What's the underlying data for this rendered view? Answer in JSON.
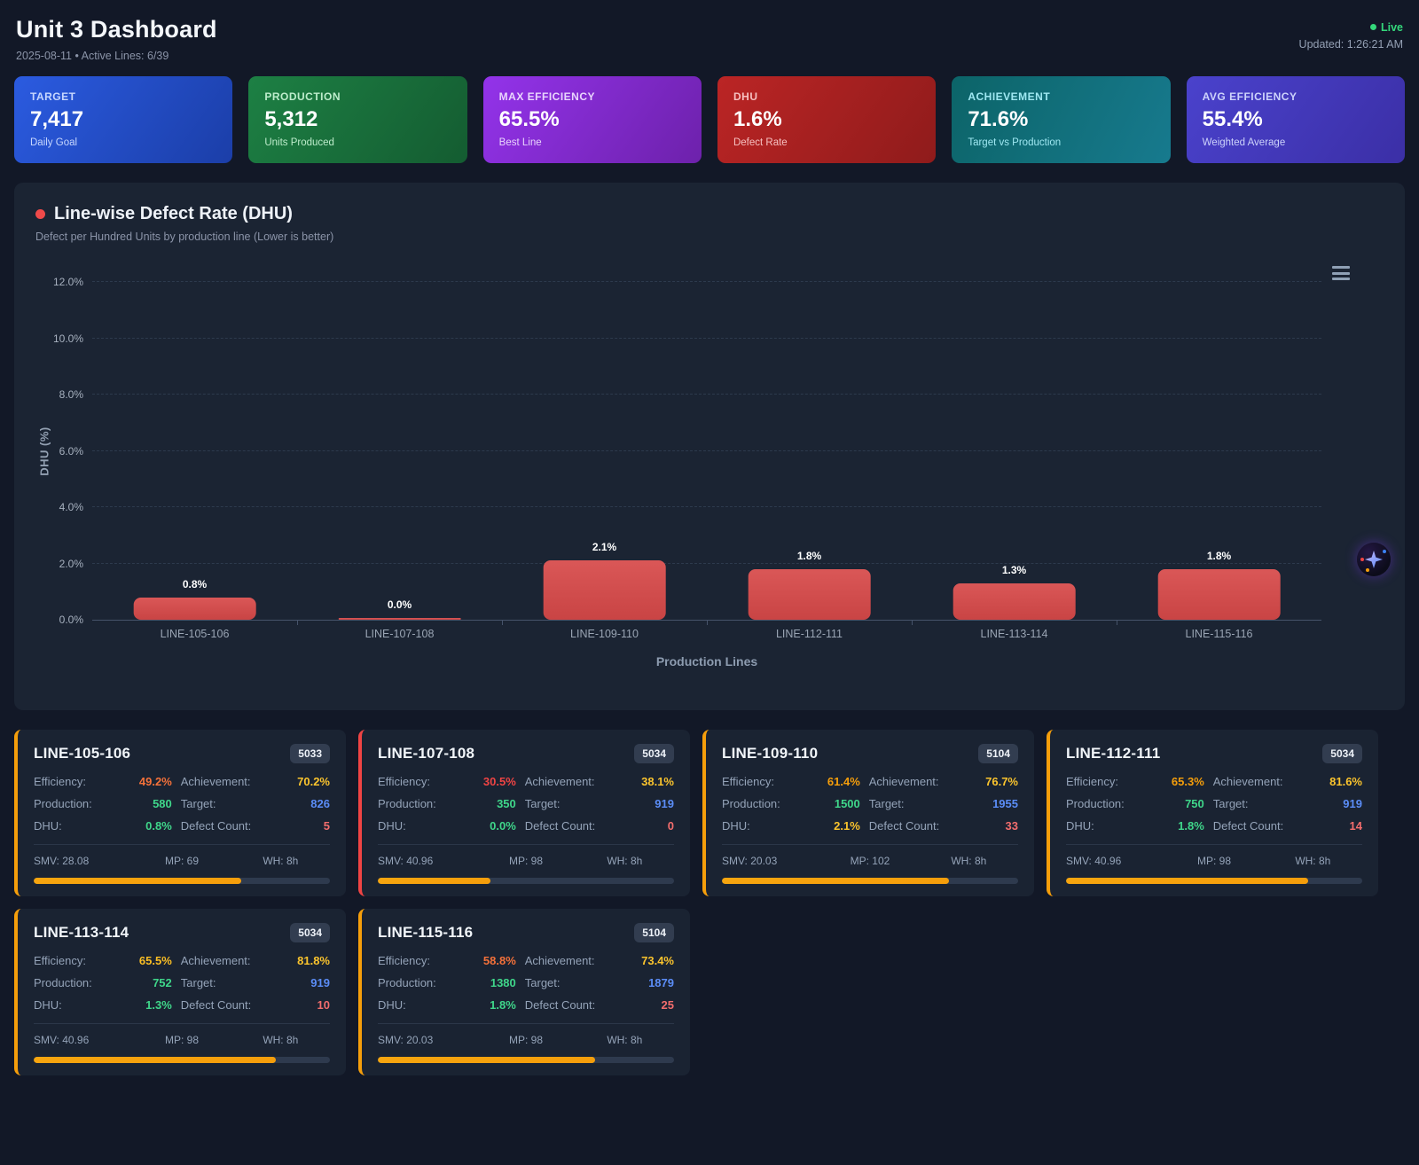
{
  "header": {
    "title": "Unit 3 Dashboard",
    "subtitle": "2025-08-11 • Active Lines: 6/39",
    "live_label": "Live",
    "updated": "Updated: 1:26:21 AM",
    "live_color": "#34d87b"
  },
  "kpis": [
    {
      "label": "TARGET",
      "value": "7,417",
      "sublabel": "Daily Goal",
      "gradient": "linear-gradient(125deg,#2b5be0,#1b3ea8)",
      "tint": "#c7d7fe"
    },
    {
      "label": "PRODUCTION",
      "value": "5,312",
      "sublabel": "Units Produced",
      "gradient": "linear-gradient(125deg,#1d8044,#145c31)",
      "tint": "#bdeccb"
    },
    {
      "label": "MAX EFFICIENCY",
      "value": "65.5%",
      "sublabel": "Best Line",
      "gradient": "linear-gradient(125deg,#9333ea,#6d21ab)",
      "tint": "#e9d5fd"
    },
    {
      "label": "DHU",
      "value": "1.6%",
      "sublabel": "Defect Rate",
      "gradient": "linear-gradient(125deg,#bb2525,#8f1b1b)",
      "tint": "#f6c0c0"
    },
    {
      "label": "ACHIEVEMENT",
      "value": "71.6%",
      "sublabel": "Target vs Production",
      "gradient": "linear-gradient(115deg,#0c6468,#177a8e)",
      "tint": "#9fe8f2"
    },
    {
      "label": "AVG EFFICIENCY",
      "value": "55.4%",
      "sublabel": "Weighted Average",
      "gradient": "linear-gradient(125deg,#4a42cc,#3b2fa6)",
      "tint": "#cdd3fb"
    }
  ],
  "chart_data": {
    "type": "bar",
    "title": "Line-wise Defect Rate (DHU)",
    "subtitle": "Defect per Hundred Units by production line (Lower is better)",
    "categories": [
      "LINE-105-106",
      "LINE-107-108",
      "LINE-109-110",
      "LINE-112-111",
      "LINE-113-114",
      "LINE-115-116"
    ],
    "values": [
      0.8,
      0.0,
      2.1,
      1.8,
      1.3,
      1.8
    ],
    "data_labels": [
      "0.8%",
      "0.0%",
      "2.1%",
      "1.8%",
      "1.3%",
      "1.8%"
    ],
    "xlabel": "Production Lines",
    "ylabel": "DHU (%)",
    "ylim": [
      0,
      12
    ],
    "ytick_step": 2,
    "ytick_labels": [
      "0.0%",
      "2.0%",
      "4.0%",
      "6.0%",
      "8.0%",
      "10.0%",
      "12.0%"
    ],
    "grid": "horizontal-dashed",
    "legend": false,
    "bar_color": "#d14c4c"
  },
  "stat_labels": {
    "efficiency": "Efficiency:",
    "achievement": "Achievement:",
    "production": "Production:",
    "target": "Target:",
    "dhu": "DHU:",
    "defects": "Defect Count:"
  },
  "lines": [
    {
      "name": "LINE-105-106",
      "badge": "5033",
      "border": "#f59e0b",
      "efficiency": "49.2%",
      "eff_color": "#f4713a",
      "achievement": "70.2%",
      "ach_color": "#fbc42d",
      "production": "580",
      "prod_color": "#3fd68a",
      "target": "826",
      "target_color": "#5b8df7",
      "dhu": "0.8%",
      "dhu_color": "#3fd68a",
      "defects": "5",
      "defect_color": "#f26d6d",
      "smv": "SMV: 28.08",
      "mp": "MP: 69",
      "wh": "WH: 8h",
      "progress": 70.2
    },
    {
      "name": "LINE-107-108",
      "badge": "5034",
      "border": "#ef4444",
      "efficiency": "30.5%",
      "eff_color": "#ef4444",
      "achievement": "38.1%",
      "ach_color": "#fbc42d",
      "production": "350",
      "prod_color": "#3fd68a",
      "target": "919",
      "target_color": "#5b8df7",
      "dhu": "0.0%",
      "dhu_color": "#3fd68a",
      "defects": "0",
      "defect_color": "#f26d6d",
      "smv": "SMV: 40.96",
      "mp": "MP: 98",
      "wh": "WH: 8h",
      "progress": 38.1
    },
    {
      "name": "LINE-109-110",
      "badge": "5104",
      "border": "#f59e0b",
      "efficiency": "61.4%",
      "eff_color": "#f59e0b",
      "achievement": "76.7%",
      "ach_color": "#fbc42d",
      "production": "1500",
      "prod_color": "#3fd68a",
      "target": "1955",
      "target_color": "#5b8df7",
      "dhu": "2.1%",
      "dhu_color": "#fbc42d",
      "defects": "33",
      "defect_color": "#f26d6d",
      "smv": "SMV: 20.03",
      "mp": "MP: 102",
      "wh": "WH: 8h",
      "progress": 76.7
    },
    {
      "name": "LINE-112-111",
      "badge": "5034",
      "border": "#f59e0b",
      "efficiency": "65.3%",
      "eff_color": "#f59e0b",
      "achievement": "81.6%",
      "ach_color": "#fbc42d",
      "production": "750",
      "prod_color": "#3fd68a",
      "target": "919",
      "target_color": "#5b8df7",
      "dhu": "1.8%",
      "dhu_color": "#3fd68a",
      "defects": "14",
      "defect_color": "#f26d6d",
      "smv": "SMV: 40.96",
      "mp": "MP: 98",
      "wh": "WH: 8h",
      "progress": 81.6
    },
    {
      "name": "LINE-113-114",
      "badge": "5034",
      "border": "#f59e0b",
      "efficiency": "65.5%",
      "eff_color": "#fbbf24",
      "achievement": "81.8%",
      "ach_color": "#fbc42d",
      "production": "752",
      "prod_color": "#3fd68a",
      "target": "919",
      "target_color": "#5b8df7",
      "dhu": "1.3%",
      "dhu_color": "#3fd68a",
      "defects": "10",
      "defect_color": "#f26d6d",
      "smv": "SMV: 40.96",
      "mp": "MP: 98",
      "wh": "WH: 8h",
      "progress": 81.8
    },
    {
      "name": "LINE-115-116",
      "badge": "5104",
      "border": "#f59e0b",
      "efficiency": "58.8%",
      "eff_color": "#f4713a",
      "achievement": "73.4%",
      "ach_color": "#fbc42d",
      "production": "1380",
      "prod_color": "#3fd68a",
      "target": "1879",
      "target_color": "#5b8df7",
      "dhu": "1.8%",
      "dhu_color": "#3fd68a",
      "defects": "25",
      "defect_color": "#f26d6d",
      "smv": "SMV: 20.03",
      "mp": "MP: 98",
      "wh": "WH: 8h",
      "progress": 73.4
    }
  ],
  "fab": {
    "name": "AI assistant",
    "star_dots": [
      "#ef4444",
      "#3b82f6",
      "#f59e0b"
    ]
  }
}
